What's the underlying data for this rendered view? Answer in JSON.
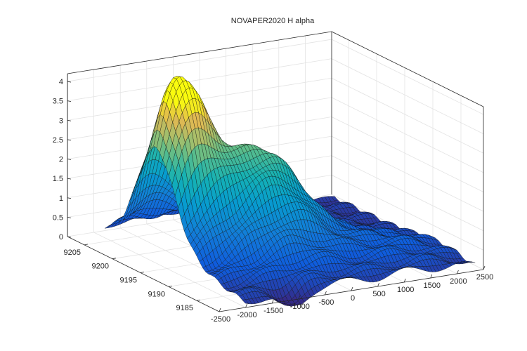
{
  "chart_data": {
    "type": "surface",
    "title": "NOVAPER2020    H alpha",
    "colormap": "parula",
    "grid": true,
    "x_axis": {
      "ticks": [
        9185,
        9190,
        9195,
        9200,
        9205
      ],
      "range": [
        9181,
        9208
      ]
    },
    "y_axis": {
      "ticks": [
        -2500,
        -2000,
        -1500,
        -1000,
        -500,
        0,
        500,
        1000,
        1500,
        2000,
        2500
      ],
      "range": [
        -2500,
        2500
      ]
    },
    "z_axis": {
      "ticks": [
        "0",
        "0.5",
        "1",
        "1.5",
        "2",
        "2.5",
        "3",
        "3.5",
        "4"
      ],
      "range": [
        0,
        4.2
      ]
    },
    "surface_summary": {
      "peak_z": 4.1,
      "peak_location": {
        "x": 9198,
        "y": -1500
      },
      "minimum_z": -0.2,
      "minimum_location": {
        "x": 9182,
        "y": -1000
      }
    }
  }
}
